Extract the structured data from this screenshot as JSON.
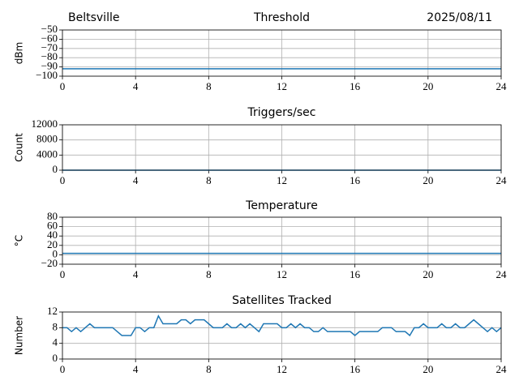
{
  "chart_data": [
    {
      "type": "line",
      "title": "Threshold",
      "left_title": "Beltsville",
      "right_title": "2025/08/11",
      "ylabel": "dBm",
      "x": [
        0,
        24
      ],
      "series": [
        {
          "color": "#1f77b4",
          "values": [
            -92,
            -92
          ]
        }
      ],
      "xlim": [
        0,
        24
      ],
      "xticks": [
        0,
        4,
        8,
        12,
        16,
        20,
        24
      ],
      "ylim": [
        -100,
        -50
      ],
      "yticks": [
        {
          "value": -50,
          "label": "−50"
        },
        {
          "value": -60,
          "label": "−60"
        },
        {
          "value": -70,
          "label": "−70"
        },
        {
          "value": -80,
          "label": "−80"
        },
        {
          "value": -90,
          "label": "−90"
        },
        {
          "value": -100,
          "label": "−100"
        }
      ],
      "grid": true
    },
    {
      "type": "line",
      "title": "Triggers/sec",
      "ylabel": "Count",
      "x": [
        0,
        24
      ],
      "series": [
        {
          "color": "#1f77b4",
          "values": [
            0,
            0
          ]
        }
      ],
      "xlim": [
        0,
        24
      ],
      "xticks": [
        0,
        4,
        8,
        12,
        16,
        20,
        24
      ],
      "ylim": [
        0,
        12000
      ],
      "yticks": [
        0,
        4000,
        8000,
        12000
      ],
      "grid": true
    },
    {
      "type": "line",
      "title": "Temperature",
      "ylabel": "°C",
      "x": [
        0,
        24
      ],
      "series": [
        {
          "color": "#1f77b4",
          "values": [
            3,
            3
          ]
        }
      ],
      "xlim": [
        0,
        24
      ],
      "xticks": [
        0,
        4,
        8,
        12,
        16,
        20,
        24
      ],
      "ylim": [
        -20,
        80
      ],
      "yticks": [
        {
          "value": -20,
          "label": "−20"
        },
        0,
        20,
        40,
        60,
        80
      ],
      "grid": true
    },
    {
      "type": "line",
      "title": "Satellites Tracked",
      "ylabel": "Number",
      "x": [
        0,
        0.25,
        0.5,
        0.75,
        1,
        1.25,
        1.5,
        1.75,
        2,
        2.25,
        2.5,
        2.75,
        3,
        3.25,
        3.5,
        3.75,
        4,
        4.25,
        4.5,
        4.75,
        5,
        5.25,
        5.5,
        5.75,
        6,
        6.25,
        6.5,
        6.75,
        7,
        7.25,
        7.5,
        7.75,
        8,
        8.25,
        8.5,
        8.75,
        9,
        9.25,
        9.5,
        9.75,
        10,
        10.25,
        10.5,
        10.75,
        11,
        11.25,
        11.5,
        11.75,
        12,
        12.25,
        12.5,
        12.75,
        13,
        13.25,
        13.5,
        13.75,
        14,
        14.25,
        14.5,
        14.75,
        15,
        15.25,
        15.5,
        15.75,
        16,
        16.25,
        16.5,
        16.75,
        17,
        17.25,
        17.5,
        17.75,
        18,
        18.25,
        18.5,
        18.75,
        19,
        19.25,
        19.5,
        19.75,
        20,
        20.25,
        20.5,
        20.75,
        21,
        21.25,
        21.5,
        21.75,
        22,
        22.25,
        22.5,
        22.75,
        23,
        23.25,
        23.5,
        23.75,
        24
      ],
      "series": [
        {
          "color": "#1f77b4",
          "values": [
            8,
            8,
            7,
            8,
            7,
            8,
            9,
            8,
            8,
            8,
            8,
            8,
            7,
            6,
            6,
            6,
            8,
            8,
            7,
            8,
            8,
            11,
            9,
            9,
            9,
            9,
            10,
            10,
            9,
            10,
            10,
            10,
            9,
            8,
            8,
            8,
            9,
            8,
            8,
            9,
            8,
            9,
            8,
            7,
            9,
            9,
            9,
            9,
            8,
            8,
            9,
            8,
            9,
            8,
            8,
            7,
            7,
            8,
            7,
            7,
            7,
            7,
            7,
            7,
            6,
            7,
            7,
            7,
            7,
            7,
            8,
            8,
            8,
            7,
            7,
            7,
            6,
            8,
            8,
            9,
            8,
            8,
            8,
            9,
            8,
            8,
            9,
            8,
            8,
            9,
            10,
            9,
            8,
            7,
            8,
            7,
            8
          ]
        }
      ],
      "xlim": [
        0,
        24
      ],
      "xticks": [
        0,
        4,
        8,
        12,
        16,
        20,
        24
      ],
      "ylim": [
        0,
        12
      ],
      "yticks": [
        0,
        4,
        8,
        12
      ],
      "grid": true
    }
  ]
}
